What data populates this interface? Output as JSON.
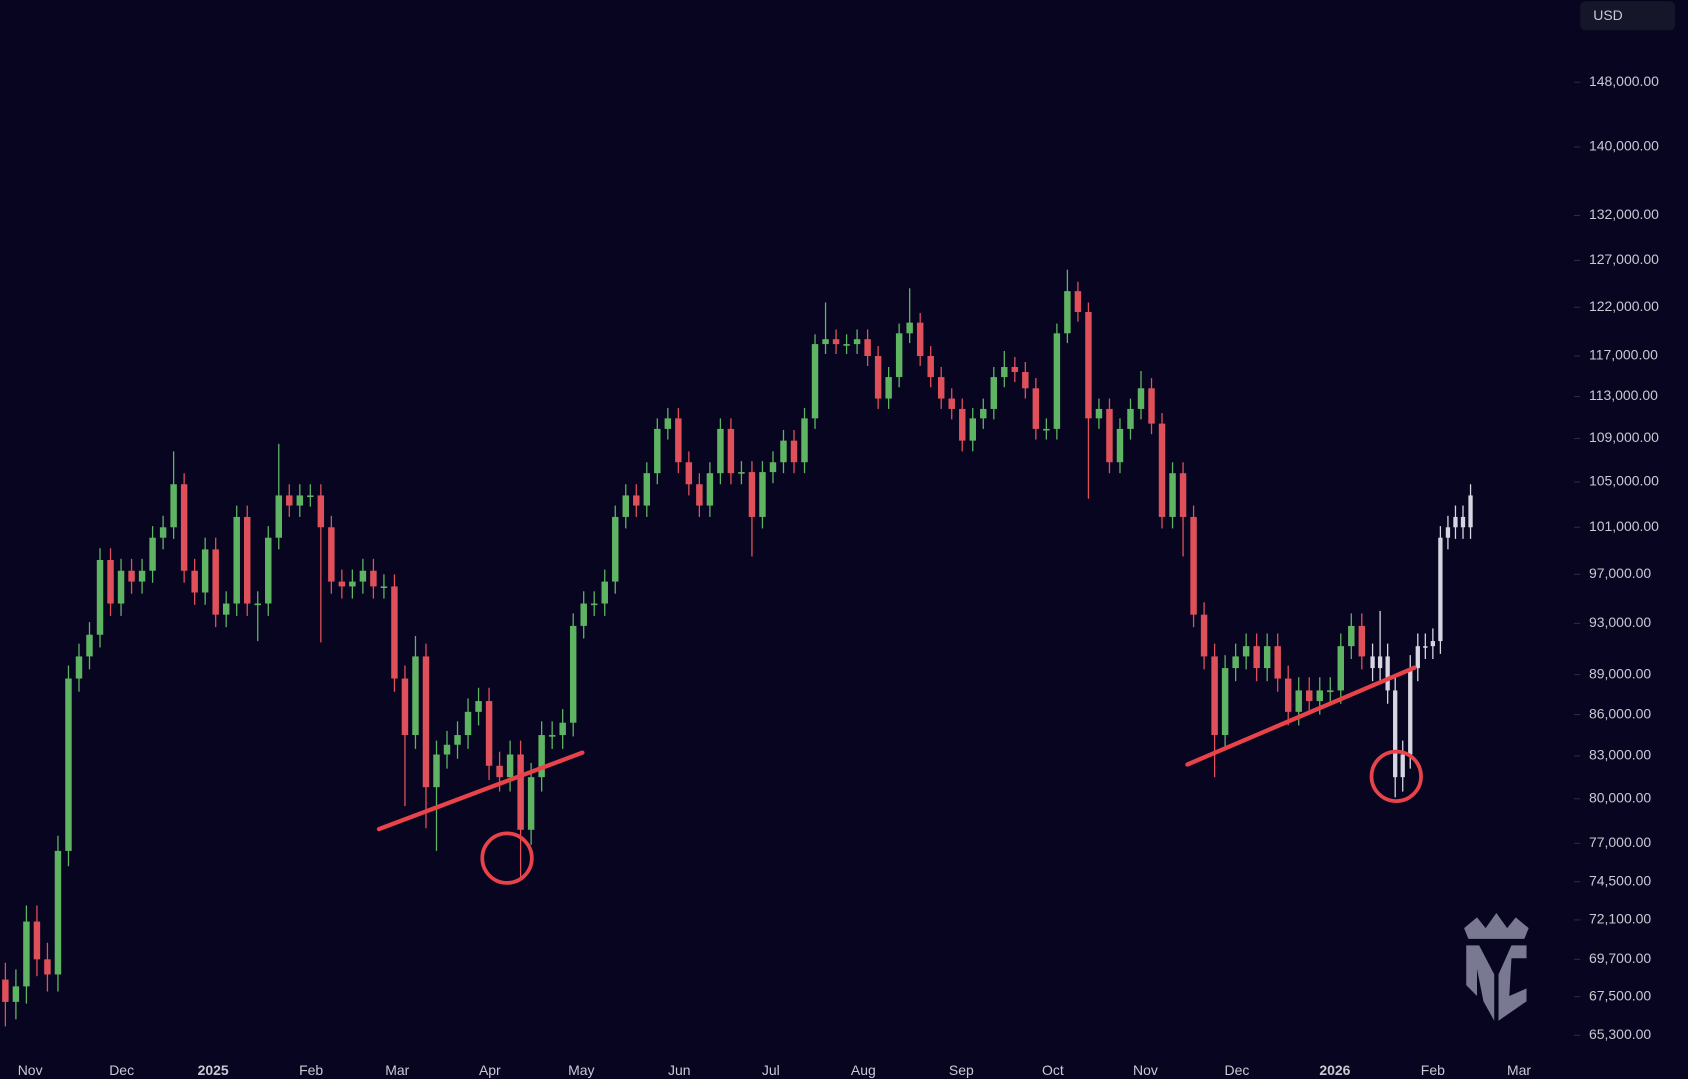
{
  "chart_data": {
    "type": "candlestick",
    "currency_label": "USD",
    "yscale": "log",
    "ylim": [
      63900,
      158800
    ],
    "yticks": [
      {
        "value": 148000,
        "label": "148,000.00"
      },
      {
        "value": 140000,
        "label": "140,000.00"
      },
      {
        "value": 132000,
        "label": "132,000.00"
      },
      {
        "value": 127000,
        "label": "127,000.00"
      },
      {
        "value": 122000,
        "label": "122,000.00"
      },
      {
        "value": 117000,
        "label": "117,000.00"
      },
      {
        "value": 113000,
        "label": "113,000.00"
      },
      {
        "value": 109000,
        "label": "109,000.00"
      },
      {
        "value": 105000,
        "label": "105,000.00"
      },
      {
        "value": 101000,
        "label": "101,000.00"
      },
      {
        "value": 97000,
        "label": "97,000.00"
      },
      {
        "value": 93000,
        "label": "93,000.00"
      },
      {
        "value": 89000,
        "label": "89,000.00"
      },
      {
        "value": 86000,
        "label": "86,000.00"
      },
      {
        "value": 83000,
        "label": "83,000.00"
      },
      {
        "value": 80000,
        "label": "80,000.00"
      },
      {
        "value": 77000,
        "label": "77,000.00"
      },
      {
        "value": 74500,
        "label": "74,500.00"
      },
      {
        "value": 72100,
        "label": "72,100.00"
      },
      {
        "value": 69700,
        "label": "69,700.00"
      },
      {
        "value": 67500,
        "label": "67,500.00"
      },
      {
        "value": 65300,
        "label": "65,300.00"
      }
    ],
    "x_labels": [
      "Nov",
      "Dec",
      "2025",
      "Feb",
      "Mar",
      "Apr",
      "May",
      "Jun",
      "Jul",
      "Aug",
      "Sep",
      "Oct",
      "Nov",
      "Dec",
      "2026",
      "Feb",
      "Mar"
    ],
    "series": [
      {
        "color_up": "#5fb463",
        "color_down": "#e0505a",
        "open": [
          68500,
          67200,
          68100,
          72000,
          69700,
          68800,
          76500,
          88700,
          90400,
          92100,
          98200,
          94600,
          97300,
          96400,
          97300,
          100100,
          101000,
          104800,
          97300,
          95500,
          99100,
          93700,
          94600,
          101900,
          94600,
          94600,
          100100,
          103800,
          102900,
          103800,
          103800,
          101000,
          96400,
          96000,
          96400,
          97300,
          96000,
          96000,
          88700,
          84500,
          90400,
          80800,
          83100,
          83800,
          84500,
          86200,
          87000,
          82300,
          81500,
          83100,
          77900,
          81500,
          84500,
          84500,
          85400,
          92800,
          94600,
          94600,
          96400,
          101900,
          103800,
          102900,
          105800,
          109900,
          110900,
          106800,
          104800,
          102900,
          105800,
          109900,
          105800,
          105900,
          101900,
          105900,
          106800,
          108800,
          106800,
          110900,
          118200,
          118700,
          118200,
          118200,
          118700,
          117000,
          112800,
          114900,
          119300,
          120400,
          117000,
          114900,
          112800,
          111800,
          108800,
          110900,
          111800,
          114900,
          115900,
          115400,
          113800,
          109900,
          109900,
          119300,
          123700,
          121500,
          110900,
          111800,
          106800,
          109900,
          111800,
          113800,
          110400,
          101900,
          105800,
          101900,
          93700,
          90400,
          84500,
          89500,
          90400,
          91200,
          89500,
          91200,
          88700,
          86200,
          87800,
          87000,
          87800,
          87800,
          91200,
          92800
        ],
        "high": [
          69500,
          69100,
          73000,
          73000,
          70700,
          77500,
          89700,
          91400,
          93100,
          99200,
          99200,
          98300,
          98300,
          98300,
          101100,
          102000,
          107800,
          105800,
          98300,
          100100,
          100100,
          95600,
          102900,
          102900,
          95600,
          101100,
          108500,
          104800,
          104800,
          104800,
          104800,
          102000,
          97400,
          97400,
          98300,
          98300,
          97000,
          97000,
          89700,
          92000,
          91400,
          84100,
          84800,
          85500,
          87200,
          88000,
          88000,
          83300,
          84100,
          84100,
          82500,
          85500,
          85500,
          86400,
          93800,
          95600,
          95600,
          97400,
          102900,
          104800,
          104800,
          106800,
          110900,
          111900,
          111900,
          107800,
          105800,
          106800,
          110900,
          110900,
          106900,
          106900,
          106900,
          107800,
          109800,
          109800,
          111900,
          119200,
          122500,
          119700,
          119200,
          119700,
          119700,
          118000,
          115900,
          120300,
          124000,
          121400,
          118000,
          115900,
          113800,
          112800,
          111900,
          112800,
          115900,
          117500,
          116900,
          116400,
          114800,
          110900,
          120300,
          126000,
          124700,
          122500,
          112800,
          112800,
          110900,
          112800,
          115500,
          114800,
          111400,
          106800,
          106800,
          102900,
          94700,
          91400,
          90500,
          91400,
          92200,
          92200,
          92200,
          92200,
          89700,
          88800,
          88800,
          88800,
          88800,
          92200,
          93800,
          93800
        ],
        "low": [
          65800,
          66200,
          67100,
          68700,
          67800,
          67800,
          75500,
          87700,
          89400,
          91100,
          93600,
          93600,
          95400,
          95400,
          96300,
          99100,
          100000,
          96300,
          94500,
          94500,
          92700,
          92700,
          93600,
          93600,
          91600,
          93600,
          99100,
          101900,
          101900,
          102800,
          91500,
          95400,
          95000,
          95000,
          95400,
          95000,
          95000,
          87700,
          79500,
          83500,
          78000,
          76500,
          82100,
          82800,
          83500,
          85200,
          81300,
          80500,
          80500,
          74600,
          76900,
          80500,
          83500,
          83500,
          84400,
          91800,
          93600,
          93600,
          95400,
          100900,
          101900,
          101900,
          104800,
          108900,
          105800,
          103800,
          101900,
          101900,
          104800,
          104800,
          104800,
          98500,
          100900,
          104900,
          105800,
          105800,
          105800,
          109900,
          117200,
          117200,
          117200,
          117200,
          116000,
          111800,
          111800,
          113900,
          118300,
          116000,
          113900,
          111800,
          110800,
          107800,
          107800,
          109900,
          110800,
          113900,
          114400,
          112800,
          108900,
          108900,
          108900,
          118300,
          120500,
          103500,
          109900,
          105800,
          105800,
          108900,
          110800,
          109400,
          100900,
          100900,
          98500,
          92700,
          89400,
          81500,
          83500,
          88500,
          89400,
          88500,
          88500,
          87700,
          85200,
          85200,
          86000,
          86000,
          86800,
          86800,
          90200,
          89400
        ],
        "close": [
          67200,
          68100,
          72000,
          69700,
          68800,
          76500,
          88700,
          90400,
          92100,
          98200,
          94600,
          97300,
          96400,
          97300,
          100100,
          101000,
          104800,
          97300,
          95500,
          99100,
          93700,
          94600,
          101900,
          94600,
          94600,
          100100,
          103800,
          102900,
          103800,
          103800,
          101000,
          96400,
          96000,
          96400,
          97300,
          96000,
          96000,
          88700,
          84500,
          90400,
          80800,
          83100,
          83800,
          84500,
          86200,
          87000,
          82300,
          81500,
          83100,
          77900,
          81500,
          84500,
          84500,
          85400,
          92800,
          94600,
          94600,
          96400,
          101900,
          103800,
          102900,
          105800,
          109900,
          110900,
          106800,
          104800,
          102900,
          105800,
          109900,
          105800,
          105900,
          101900,
          105900,
          106800,
          108800,
          106800,
          110900,
          118200,
          118700,
          118200,
          118200,
          118700,
          117000,
          112800,
          114900,
          119300,
          120400,
          117000,
          114900,
          112800,
          111800,
          108800,
          110900,
          111800,
          114900,
          115900,
          115400,
          113800,
          109900,
          109900,
          119300,
          123700,
          121500,
          110900,
          111800,
          106800,
          109900,
          111800,
          113800,
          110400,
          101900,
          105800,
          101900,
          93700,
          90400,
          84500,
          89500,
          90400,
          91200,
          89500,
          91200,
          88700,
          86200,
          87800,
          87000,
          87800,
          87800,
          91200,
          92800,
          90400
        ]
      },
      {
        "color": "#d6d6e2",
        "open": [
          90400,
          89500,
          90400,
          87800,
          81500,
          83100,
          89500,
          91200,
          91200,
          91600,
          100100,
          101000,
          101900,
          101000
        ],
        "high": [
          91400,
          94000,
          91400,
          88800,
          84100,
          90500,
          92200,
          92200,
          92600,
          101100,
          102000,
          102900,
          102900,
          104800
        ],
        "low": [
          88500,
          88500,
          86800,
          80100,
          80500,
          82100,
          88500,
          90200,
          90200,
          90600,
          99100,
          100000,
          100000,
          100000
        ],
        "close": [
          89500,
          90400,
          87800,
          81500,
          83100,
          89500,
          91200,
          91200,
          91600,
          100100,
          101000,
          101900,
          101000,
          103800
        ]
      }
    ]
  }
}
